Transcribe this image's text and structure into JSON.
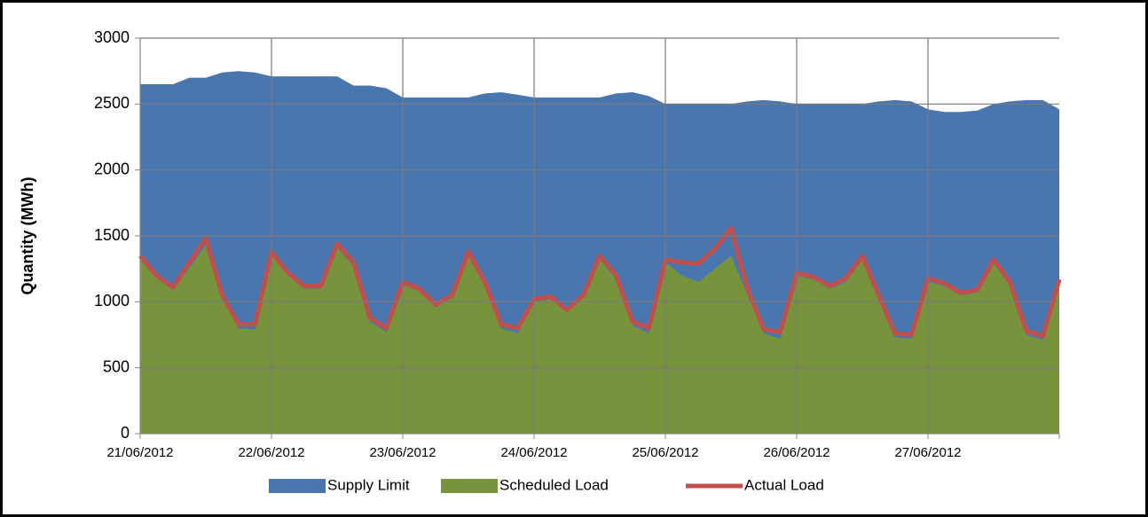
{
  "chart_data": {
    "type": "area",
    "y_label": "Quantity (MWh)",
    "categories": [
      "21/06/2012",
      null,
      null,
      null,
      null,
      null,
      null,
      null,
      "22/06/2012",
      null,
      null,
      null,
      null,
      null,
      null,
      null,
      "23/06/2012",
      null,
      null,
      null,
      null,
      null,
      null,
      null,
      "24/06/2012",
      null,
      null,
      null,
      null,
      null,
      null,
      null,
      "25/06/2012",
      null,
      null,
      null,
      null,
      null,
      null,
      null,
      "26/06/2012",
      null,
      null,
      null,
      null,
      null,
      null,
      null,
      "27/06/2012",
      null,
      null,
      null,
      null,
      null,
      null,
      null,
      null
    ],
    "series": [
      {
        "name": "Supply Limit",
        "type": "area",
        "color": "#4a76b0",
        "values": [
          2650,
          2650,
          2650,
          2700,
          2700,
          2740,
          2750,
          2740,
          2710,
          2710,
          2710,
          2710,
          2710,
          2640,
          2640,
          2620,
          2550,
          2550,
          2550,
          2550,
          2550,
          2580,
          2590,
          2570,
          2550,
          2550,
          2550,
          2550,
          2550,
          2580,
          2590,
          2560,
          2500,
          2500,
          2500,
          2500,
          2500,
          2520,
          2530,
          2520,
          2500,
          2500,
          2500,
          2500,
          2500,
          2520,
          2530,
          2520,
          2460,
          2440,
          2440,
          2450,
          2500,
          2520,
          2530,
          2530,
          2460
        ]
      },
      {
        "name": "Scheduled Load",
        "type": "area",
        "color": "#77933c",
        "values": [
          1330,
          1180,
          1090,
          1260,
          1430,
          1030,
          800,
          790,
          1350,
          1200,
          1100,
          1100,
          1410,
          1270,
          850,
          770,
          1130,
          1080,
          960,
          1030,
          1350,
          1120,
          800,
          760,
          1000,
          1020,
          920,
          1030,
          1320,
          1170,
          820,
          760,
          1300,
          1200,
          1150,
          1250,
          1350,
          1050,
          760,
          720,
          1200,
          1170,
          1100,
          1150,
          1320,
          1020,
          730,
          720,
          1150,
          1120,
          1050,
          1070,
          1290,
          1120,
          750,
          710,
          1140
        ]
      },
      {
        "name": "Actual Load",
        "type": "line",
        "color": "#c0504d",
        "values": [
          1350,
          1200,
          1110,
          1300,
          1480,
          1050,
          830,
          830,
          1380,
          1220,
          1120,
          1120,
          1440,
          1300,
          880,
          800,
          1150,
          1100,
          980,
          1050,
          1380,
          1150,
          830,
          800,
          1020,
          1040,
          940,
          1050,
          1350,
          1200,
          850,
          800,
          1320,
          1300,
          1290,
          1400,
          1560,
          1100,
          790,
          770,
          1220,
          1190,
          1120,
          1180,
          1350,
          1050,
          760,
          750,
          1180,
          1140,
          1070,
          1090,
          1320,
          1150,
          780,
          740,
          1170
        ]
      }
    ],
    "ylim": [
      0,
      3000
    ],
    "yticks": [
      0,
      500,
      1000,
      1500,
      2000,
      2500,
      3000
    ],
    "grid": true,
    "legend": "bottom"
  }
}
